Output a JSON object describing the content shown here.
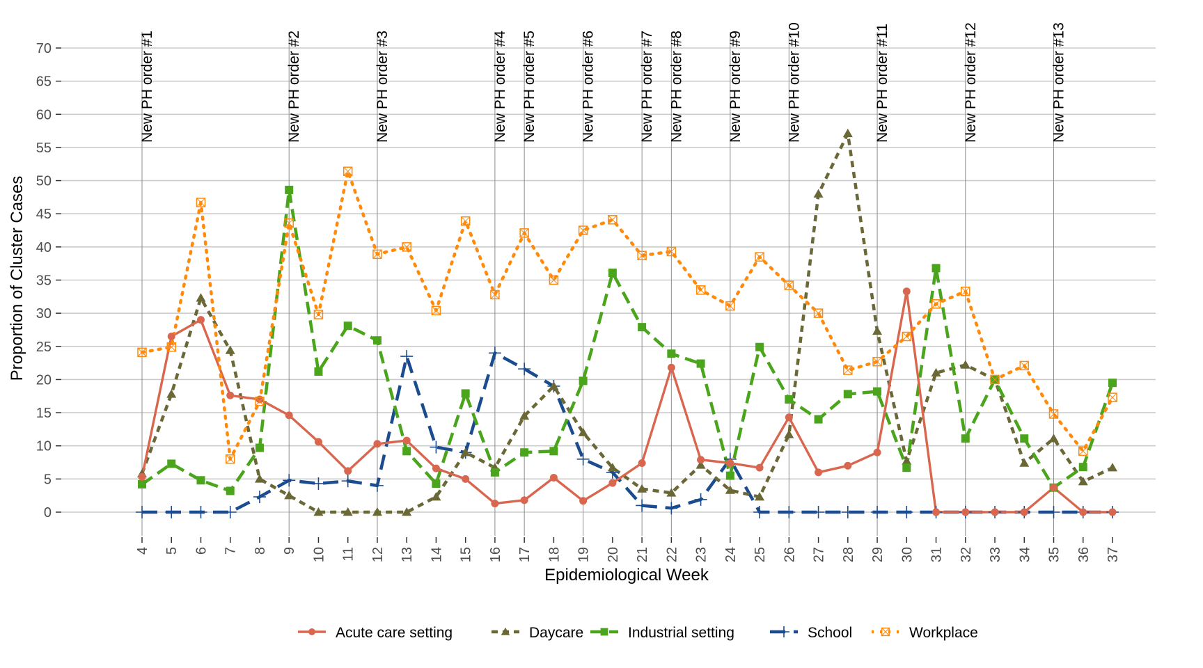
{
  "chart_data": {
    "type": "line",
    "title": "",
    "xlabel": "Epidemiological Week",
    "ylabel": "Proportion of Cluster Cases",
    "ylim": [
      0,
      70
    ],
    "yticks": [
      0,
      5,
      10,
      15,
      20,
      25,
      30,
      35,
      40,
      45,
      50,
      55,
      60,
      65,
      70
    ],
    "x": [
      4,
      5,
      6,
      7,
      8,
      9,
      10,
      11,
      12,
      13,
      14,
      15,
      16,
      17,
      18,
      19,
      20,
      21,
      22,
      23,
      24,
      25,
      26,
      27,
      28,
      29,
      30,
      31,
      32,
      33,
      34,
      35,
      36,
      37
    ],
    "grid": true,
    "legend_position": "bottom",
    "annotations": [
      {
        "week": 4,
        "label": "New PH order #1"
      },
      {
        "week": 9,
        "label": "New PH order #2"
      },
      {
        "week": 12,
        "label": "New PH order #3"
      },
      {
        "week": 16,
        "label": "New PH order #4"
      },
      {
        "week": 17,
        "label": "New PH order #5"
      },
      {
        "week": 19,
        "label": "New PH order #6"
      },
      {
        "week": 21,
        "label": "New PH order #7"
      },
      {
        "week": 22,
        "label": "New PH order #8"
      },
      {
        "week": 24,
        "label": "New PH order #9"
      },
      {
        "week": 26,
        "label": "New PH order #10"
      },
      {
        "week": 29,
        "label": "New PH order #11"
      },
      {
        "week": 32,
        "label": "New PH order #12"
      },
      {
        "week": 35,
        "label": "New PH order #13"
      }
    ],
    "series": [
      {
        "name": "Acute care setting",
        "color": "#d9674f",
        "dash": "solid",
        "marker": "circle",
        "values": [
          5.3,
          26.5,
          29.0,
          17.6,
          17.0,
          14.6,
          10.6,
          6.2,
          10.3,
          10.8,
          6.6,
          5.0,
          1.3,
          1.8,
          5.2,
          1.7,
          4.4,
          7.4,
          21.8,
          7.9,
          7.4,
          6.7,
          14.3,
          6.0,
          7.0,
          9.0,
          33.3,
          0,
          0,
          0,
          0,
          3.7,
          0,
          0
        ]
      },
      {
        "name": "Daycare",
        "color": "#6b6837",
        "dash": "dashed-short",
        "marker": "triangle",
        "values": [
          5.8,
          17.8,
          32.3,
          24.4,
          5.0,
          2.5,
          0,
          0,
          0,
          0,
          2.3,
          9.0,
          6.7,
          14.5,
          19.0,
          12.0,
          6.7,
          3.5,
          2.9,
          7.1,
          3.3,
          2.3,
          11.7,
          48.0,
          57.1,
          27.3,
          7.7,
          21.0,
          22.2,
          20.0,
          7.4,
          11.1,
          4.6,
          6.7
        ]
      },
      {
        "name": "Industrial setting",
        "color": "#4aa51c",
        "dash": "dashed-long",
        "marker": "square",
        "values": [
          4.2,
          7.3,
          4.8,
          3.2,
          9.7,
          48.6,
          21.2,
          28.1,
          25.9,
          9.2,
          4.3,
          17.9,
          6.0,
          9.0,
          9.2,
          19.8,
          36.1,
          27.9,
          23.9,
          22.4,
          5.5,
          24.9,
          17.0,
          14.0,
          17.8,
          18.2,
          6.7,
          36.8,
          11.1,
          20.0,
          11.1,
          3.7,
          6.8,
          19.5
        ]
      },
      {
        "name": "School",
        "color": "#1b4c8f",
        "dash": "dashed-longer",
        "marker": "plus",
        "values": [
          0,
          0,
          0,
          0,
          2.3,
          4.8,
          4.3,
          4.7,
          4.0,
          23.5,
          9.8,
          9.0,
          24.0,
          21.6,
          19.0,
          8.0,
          6.0,
          1.0,
          0.6,
          1.9,
          8.0,
          0,
          0,
          0,
          0,
          0,
          0,
          0,
          0,
          0,
          0,
          0,
          0,
          0
        ]
      },
      {
        "name": "Workplace",
        "color": "#ff8a0c",
        "dash": "dotted",
        "marker": "square-x",
        "values": [
          24.1,
          24.9,
          46.7,
          8.0,
          16.7,
          43.6,
          29.8,
          51.4,
          38.9,
          40.0,
          30.4,
          43.9,
          32.8,
          42.1,
          35.0,
          42.5,
          44.1,
          38.7,
          39.3,
          33.5,
          31.1,
          38.5,
          34.2,
          30.0,
          21.4,
          22.7,
          26.5,
          31.4,
          33.3,
          20.0,
          22.1,
          14.8,
          9.2,
          17.3
        ]
      }
    ]
  }
}
